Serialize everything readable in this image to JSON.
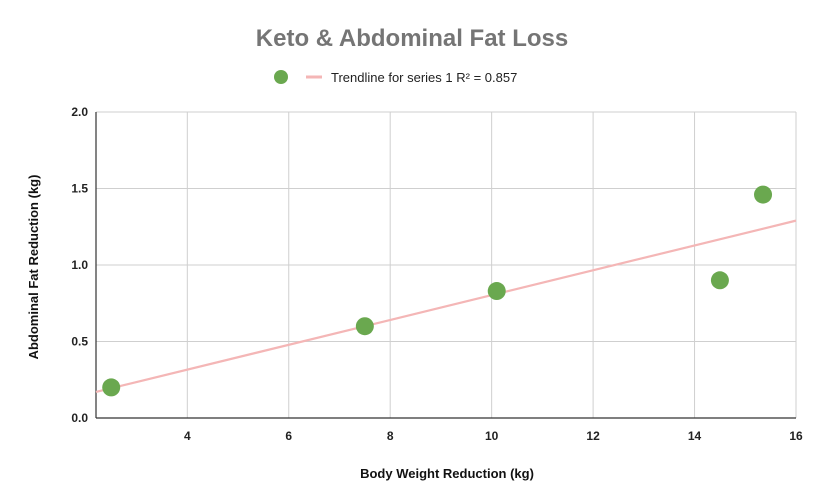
{
  "chart_data": {
    "type": "scatter",
    "title": "Keto & Abdominal Fat Loss",
    "xlabel": "Body Weight Reduction (kg)",
    "ylabel": "Abdominal Fat Reduction (kg)",
    "xlim": [
      2.2,
      16
    ],
    "ylim": [
      0,
      2.0
    ],
    "x_ticks": [
      4,
      6,
      8,
      10,
      12,
      14,
      16
    ],
    "y_ticks": [
      0.0,
      0.5,
      1.0,
      1.5,
      2.0
    ],
    "x_tick_labels": [
      "4",
      "6",
      "8",
      "10",
      "12",
      "14",
      "16"
    ],
    "y_tick_labels": [
      "0.0",
      "0.5",
      "1.0",
      "1.5",
      "2.0"
    ],
    "grid": true,
    "legend_position": "top",
    "series": [
      {
        "points": [
          {
            "x": 2.5,
            "y": 0.2
          },
          {
            "x": 7.5,
            "y": 0.6
          },
          {
            "x": 10.1,
            "y": 0.83
          },
          {
            "x": 14.5,
            "y": 0.9
          },
          {
            "x": 15.35,
            "y": 1.46
          }
        ],
        "color": "#6aa84f"
      }
    ],
    "trendline": {
      "label": "Trendline for series 1 R² = 0.857",
      "start": {
        "x": 2.2,
        "y": 0.17
      },
      "end": {
        "x": 16,
        "y": 1.29
      },
      "color": "#f4b6b6"
    }
  }
}
